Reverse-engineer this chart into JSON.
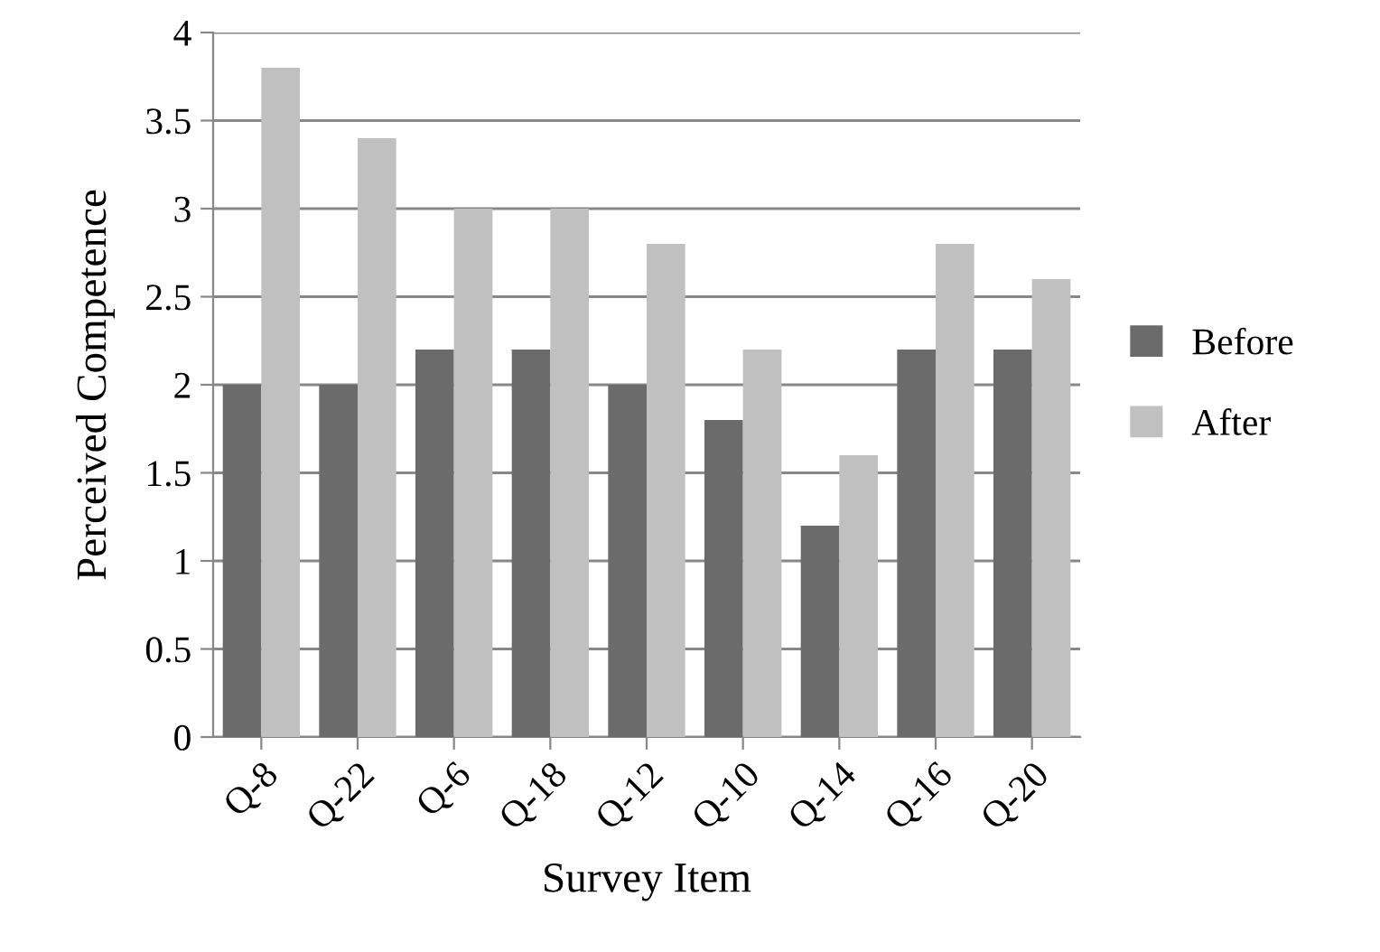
{
  "chart_data": {
    "type": "bar",
    "xlabel": "Survey Item",
    "ylabel": "Perceived Competence",
    "categories": [
      "Q-8",
      "Q-22",
      "Q-6",
      "Q-18",
      "Q-12",
      "Q-10",
      "Q-14",
      "Q-16",
      "Q-20"
    ],
    "series": [
      {
        "name": "Before",
        "color": "#6b6b6b",
        "values": [
          2,
          2,
          2.2,
          2.2,
          2,
          1.8,
          1.2,
          2.2,
          2.2
        ]
      },
      {
        "name": "After",
        "color": "#c0c0c0",
        "values": [
          3.8,
          3.4,
          3.0,
          3.0,
          2.8,
          2.2,
          1.6,
          2.8,
          2.6
        ]
      }
    ],
    "ylim": [
      0,
      4
    ],
    "yticks": [
      0,
      0.5,
      1,
      1.5,
      2,
      2.5,
      3,
      3.5,
      4
    ],
    "grid": "y",
    "legend": "right"
  }
}
